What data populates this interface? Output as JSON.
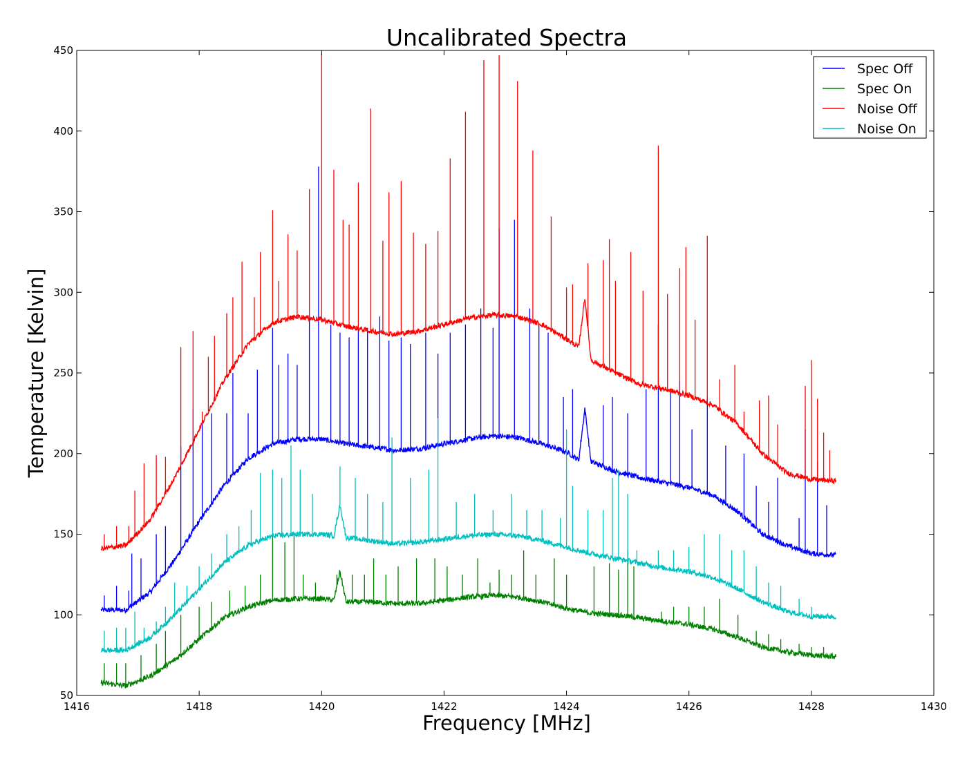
{
  "chart_data": {
    "type": "line",
    "title": "Uncalibrated Spectra",
    "xlabel": "Frequency [MHz]",
    "ylabel": "Temperature [Kelvin]",
    "xlim": [
      1416,
      1430
    ],
    "ylim": [
      50,
      450
    ],
    "x_ticks": [
      1416,
      1418,
      1420,
      1422,
      1424,
      1426,
      1428,
      1430
    ],
    "y_ticks": [
      50,
      100,
      150,
      200,
      250,
      300,
      350,
      400,
      450
    ],
    "grid": false,
    "legend_position": "top-right",
    "x_range_data": [
      1416.4,
      1428.4
    ],
    "series": [
      {
        "name": "Spec Off",
        "color": "#0000ff",
        "x": [
          1416.4,
          1416.8,
          1417.2,
          1417.6,
          1418.0,
          1418.4,
          1418.8,
          1419.2,
          1419.6,
          1420.0,
          1420.4,
          1420.8,
          1421.2,
          1421.6,
          1422.0,
          1422.4,
          1422.8,
          1423.2,
          1423.6,
          1424.0,
          1424.2,
          1424.3,
          1424.4,
          1424.8,
          1425.2,
          1425.6,
          1426.0,
          1426.4,
          1426.8,
          1427.2,
          1427.6,
          1428.0,
          1428.4
        ],
        "y": [
          103,
          103,
          114,
          134,
          158,
          180,
          197,
          206,
          209,
          209,
          206,
          204,
          202,
          203,
          206,
          209,
          211,
          210,
          206,
          201,
          196,
          228,
          195,
          189,
          185,
          182,
          179,
          174,
          164,
          150,
          143,
          138,
          137
        ],
        "spikes": [
          [
            1416.45,
            112
          ],
          [
            1416.65,
            118
          ],
          [
            1416.85,
            115
          ],
          [
            1416.9,
            138
          ],
          [
            1417.05,
            135
          ],
          [
            1417.3,
            150
          ],
          [
            1417.45,
            155
          ],
          [
            1417.7,
            205
          ],
          [
            1417.9,
            228
          ],
          [
            1418.05,
            220
          ],
          [
            1418.2,
            225
          ],
          [
            1418.45,
            225
          ],
          [
            1418.55,
            250
          ],
          [
            1418.8,
            225
          ],
          [
            1418.95,
            252
          ],
          [
            1419.2,
            278
          ],
          [
            1419.3,
            255
          ],
          [
            1419.45,
            262
          ],
          [
            1419.6,
            255
          ],
          [
            1419.8,
            285
          ],
          [
            1419.95,
            378
          ],
          [
            1420.15,
            280
          ],
          [
            1420.3,
            275
          ],
          [
            1420.45,
            272
          ],
          [
            1420.6,
            280
          ],
          [
            1420.75,
            278
          ],
          [
            1420.95,
            285
          ],
          [
            1421.1,
            270
          ],
          [
            1421.3,
            272
          ],
          [
            1421.45,
            268
          ],
          [
            1421.7,
            275
          ],
          [
            1421.9,
            262
          ],
          [
            1422.1,
            275
          ],
          [
            1422.35,
            280
          ],
          [
            1422.6,
            290
          ],
          [
            1422.8,
            278
          ],
          [
            1422.9,
            340
          ],
          [
            1423.15,
            345
          ],
          [
            1423.4,
            290
          ],
          [
            1423.55,
            280
          ],
          [
            1423.7,
            275
          ],
          [
            1423.95,
            235
          ],
          [
            1424.1,
            240
          ],
          [
            1424.6,
            230
          ],
          [
            1424.75,
            235
          ],
          [
            1425.0,
            225
          ],
          [
            1425.3,
            240
          ],
          [
            1425.5,
            280
          ],
          [
            1425.7,
            240
          ],
          [
            1425.85,
            245
          ],
          [
            1426.05,
            215
          ],
          [
            1426.3,
            235
          ],
          [
            1426.6,
            205
          ],
          [
            1426.9,
            200
          ],
          [
            1427.1,
            180
          ],
          [
            1427.3,
            170
          ],
          [
            1427.45,
            185
          ],
          [
            1427.8,
            160
          ],
          [
            1427.9,
            215
          ],
          [
            1428.1,
            195
          ],
          [
            1428.25,
            168
          ]
        ]
      },
      {
        "name": "Spec On",
        "color": "#008000",
        "x": [
          1416.4,
          1416.8,
          1417.2,
          1417.6,
          1418.0,
          1418.4,
          1418.8,
          1419.2,
          1419.6,
          1420.0,
          1420.2,
          1420.3,
          1420.4,
          1420.8,
          1421.2,
          1421.6,
          1422.0,
          1422.4,
          1422.8,
          1423.2,
          1423.6,
          1424.0,
          1424.4,
          1424.8,
          1425.2,
          1425.6,
          1426.0,
          1426.4,
          1426.8,
          1427.2,
          1427.6,
          1428.0,
          1428.4
        ],
        "y": [
          58,
          56,
          62,
          72,
          85,
          98,
          105,
          109,
          110,
          110,
          109,
          127,
          108,
          108,
          107,
          107,
          109,
          111,
          112,
          111,
          108,
          104,
          101,
          100,
          98,
          96,
          94,
          91,
          86,
          80,
          77,
          75,
          74
        ],
        "spikes": [
          [
            1416.45,
            70
          ],
          [
            1416.65,
            70
          ],
          [
            1416.8,
            70
          ],
          [
            1417.05,
            75
          ],
          [
            1417.3,
            82
          ],
          [
            1417.45,
            90
          ],
          [
            1417.7,
            100
          ],
          [
            1418.0,
            105
          ],
          [
            1418.2,
            108
          ],
          [
            1418.5,
            115
          ],
          [
            1418.75,
            118
          ],
          [
            1419.0,
            125
          ],
          [
            1419.2,
            150
          ],
          [
            1419.4,
            145
          ],
          [
            1419.55,
            150
          ],
          [
            1419.7,
            125
          ],
          [
            1419.9,
            120
          ],
          [
            1420.25,
            125
          ],
          [
            1420.5,
            125
          ],
          [
            1420.7,
            125
          ],
          [
            1420.85,
            135
          ],
          [
            1421.05,
            125
          ],
          [
            1421.25,
            130
          ],
          [
            1421.55,
            135
          ],
          [
            1421.85,
            135
          ],
          [
            1422.05,
            130
          ],
          [
            1422.3,
            125
          ],
          [
            1422.55,
            135
          ],
          [
            1422.75,
            120
          ],
          [
            1422.9,
            128
          ],
          [
            1423.1,
            125
          ],
          [
            1423.3,
            140
          ],
          [
            1423.5,
            125
          ],
          [
            1423.8,
            135
          ],
          [
            1424.0,
            125
          ],
          [
            1424.45,
            130
          ],
          [
            1424.7,
            132
          ],
          [
            1424.85,
            128
          ],
          [
            1425.0,
            140
          ],
          [
            1425.1,
            130
          ],
          [
            1425.55,
            102
          ],
          [
            1425.75,
            105
          ],
          [
            1426.0,
            105
          ],
          [
            1426.25,
            105
          ],
          [
            1426.5,
            110
          ],
          [
            1426.8,
            100
          ],
          [
            1427.1,
            90
          ],
          [
            1427.3,
            88
          ],
          [
            1427.5,
            85
          ],
          [
            1427.8,
            82
          ],
          [
            1428.0,
            80
          ],
          [
            1428.2,
            80
          ]
        ]
      },
      {
        "name": "Noise Off",
        "color": "#ff0000",
        "x": [
          1416.4,
          1416.8,
          1417.2,
          1417.6,
          1418.0,
          1418.4,
          1418.8,
          1419.2,
          1419.6,
          1420.0,
          1420.4,
          1420.8,
          1421.2,
          1421.6,
          1422.0,
          1422.4,
          1422.8,
          1423.2,
          1423.6,
          1424.0,
          1424.2,
          1424.3,
          1424.4,
          1424.8,
          1425.2,
          1425.6,
          1426.0,
          1426.4,
          1426.8,
          1427.2,
          1427.6,
          1428.0,
          1428.4
        ],
        "y": [
          141,
          143,
          159,
          185,
          215,
          245,
          268,
          281,
          285,
          283,
          279,
          276,
          274,
          276,
          280,
          284,
          286,
          285,
          280,
          271,
          266,
          297,
          258,
          250,
          243,
          240,
          236,
          230,
          218,
          200,
          188,
          184,
          183
        ],
        "spikes": [
          [
            1416.45,
            150
          ],
          [
            1416.65,
            155
          ],
          [
            1416.85,
            155
          ],
          [
            1416.95,
            177
          ],
          [
            1417.1,
            194
          ],
          [
            1417.3,
            199
          ],
          [
            1417.45,
            198
          ],
          [
            1417.7,
            266
          ],
          [
            1417.9,
            276
          ],
          [
            1418.05,
            226
          ],
          [
            1418.15,
            260
          ],
          [
            1418.25,
            273
          ],
          [
            1418.45,
            287
          ],
          [
            1418.55,
            297
          ],
          [
            1418.7,
            319
          ],
          [
            1418.9,
            297
          ],
          [
            1419.0,
            325
          ],
          [
            1419.2,
            351
          ],
          [
            1419.3,
            307
          ],
          [
            1419.45,
            336
          ],
          [
            1419.6,
            326
          ],
          [
            1419.8,
            364
          ],
          [
            1420.0,
            448
          ],
          [
            1420.2,
            376
          ],
          [
            1420.35,
            345
          ],
          [
            1420.45,
            342
          ],
          [
            1420.6,
            368
          ],
          [
            1420.8,
            414
          ],
          [
            1421.0,
            332
          ],
          [
            1421.1,
            362
          ],
          [
            1421.3,
            369
          ],
          [
            1421.5,
            337
          ],
          [
            1421.7,
            330
          ],
          [
            1421.9,
            338
          ],
          [
            1422.1,
            383
          ],
          [
            1422.35,
            412
          ],
          [
            1422.65,
            444
          ],
          [
            1422.9,
            447
          ],
          [
            1423.2,
            431
          ],
          [
            1423.45,
            388
          ],
          [
            1423.75,
            347
          ],
          [
            1424.0,
            303
          ],
          [
            1424.1,
            305
          ],
          [
            1424.35,
            318
          ],
          [
            1424.6,
            320
          ],
          [
            1424.7,
            333
          ],
          [
            1424.8,
            307
          ],
          [
            1425.05,
            325
          ],
          [
            1425.25,
            301
          ],
          [
            1425.5,
            391
          ],
          [
            1425.65,
            299
          ],
          [
            1425.85,
            315
          ],
          [
            1425.95,
            328
          ],
          [
            1426.1,
            283
          ],
          [
            1426.3,
            335
          ],
          [
            1426.5,
            246
          ],
          [
            1426.75,
            255
          ],
          [
            1426.9,
            226
          ],
          [
            1427.15,
            233
          ],
          [
            1427.3,
            236
          ],
          [
            1427.45,
            218
          ],
          [
            1427.9,
            242
          ],
          [
            1428.0,
            258
          ],
          [
            1428.1,
            234
          ],
          [
            1428.2,
            213
          ],
          [
            1428.3,
            202
          ]
        ]
      },
      {
        "name": "Noise On",
        "color": "#00bfbf",
        "x": [
          1416.4,
          1416.8,
          1417.2,
          1417.6,
          1418.0,
          1418.4,
          1418.8,
          1419.2,
          1419.6,
          1420.0,
          1420.2,
          1420.3,
          1420.4,
          1420.8,
          1421.2,
          1421.6,
          1422.0,
          1422.4,
          1422.8,
          1423.2,
          1423.6,
          1424.0,
          1424.4,
          1424.8,
          1425.2,
          1425.6,
          1426.0,
          1426.4,
          1426.8,
          1427.2,
          1427.6,
          1428.0,
          1428.4
        ],
        "y": [
          78,
          78,
          86,
          100,
          116,
          132,
          143,
          149,
          150,
          150,
          149,
          168,
          148,
          146,
          144,
          145,
          147,
          149,
          150,
          149,
          146,
          142,
          138,
          135,
          132,
          129,
          127,
          123,
          116,
          108,
          102,
          99,
          99
        ],
        "spikes": [
          [
            1416.45,
            90
          ],
          [
            1416.65,
            92
          ],
          [
            1416.8,
            92
          ],
          [
            1416.95,
            102
          ],
          [
            1417.1,
            92
          ],
          [
            1417.3,
            96
          ],
          [
            1417.45,
            105
          ],
          [
            1417.6,
            120
          ],
          [
            1417.8,
            118
          ],
          [
            1418.0,
            130
          ],
          [
            1418.2,
            138
          ],
          [
            1418.45,
            150
          ],
          [
            1418.65,
            155
          ],
          [
            1418.85,
            165
          ],
          [
            1419.0,
            188
          ],
          [
            1419.2,
            190
          ],
          [
            1419.35,
            185
          ],
          [
            1419.5,
            205
          ],
          [
            1419.65,
            190
          ],
          [
            1419.85,
            175
          ],
          [
            1420.3,
            192
          ],
          [
            1420.55,
            185
          ],
          [
            1420.75,
            175
          ],
          [
            1421.0,
            170
          ],
          [
            1421.15,
            210
          ],
          [
            1421.45,
            185
          ],
          [
            1421.75,
            190
          ],
          [
            1421.9,
            222
          ],
          [
            1422.2,
            170
          ],
          [
            1422.5,
            175
          ],
          [
            1422.8,
            165
          ],
          [
            1423.1,
            175
          ],
          [
            1423.35,
            165
          ],
          [
            1423.6,
            165
          ],
          [
            1423.9,
            160
          ],
          [
            1424.0,
            215
          ],
          [
            1424.1,
            180
          ],
          [
            1424.35,
            165
          ],
          [
            1424.6,
            165
          ],
          [
            1424.75,
            185
          ],
          [
            1424.85,
            190
          ],
          [
            1425.0,
            175
          ],
          [
            1425.15,
            140
          ],
          [
            1425.5,
            140
          ],
          [
            1425.75,
            140
          ],
          [
            1426.0,
            142
          ],
          [
            1426.25,
            150
          ],
          [
            1426.5,
            150
          ],
          [
            1426.7,
            140
          ],
          [
            1426.9,
            140
          ],
          [
            1427.1,
            130
          ],
          [
            1427.3,
            120
          ],
          [
            1427.5,
            118
          ],
          [
            1427.8,
            110
          ],
          [
            1428.0,
            105
          ]
        ]
      }
    ]
  }
}
